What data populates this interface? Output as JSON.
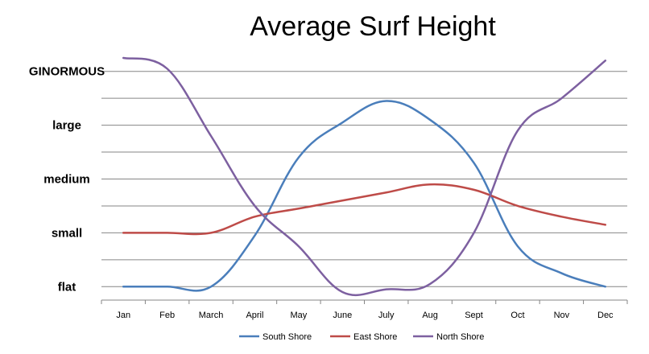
{
  "chart_data": {
    "type": "line",
    "title": "Average Surf Height",
    "xlabel": "",
    "ylabel": "",
    "categories": [
      "Jan",
      "Feb",
      "March",
      "April",
      "May",
      "June",
      "July",
      "Aug",
      "Sept",
      "Oct",
      "Nov",
      "Dec"
    ],
    "y_tick_labels": [
      {
        "label": "flat",
        "value": 0
      },
      {
        "label": "small",
        "value": 2
      },
      {
        "label": "medium",
        "value": 4
      },
      {
        "label": "large",
        "value": 6
      },
      {
        "label": "GINORMOUS",
        "value": 8
      }
    ],
    "ylim": [
      -0.5,
      8.5
    ],
    "grid": true,
    "legend_position": "bottom",
    "series": [
      {
        "name": "South Shore",
        "color": "#4A7EBB",
        "values": [
          0,
          0,
          0,
          1.9,
          4.8,
          6.1,
          6.9,
          6.2,
          4.6,
          1.5,
          0.5,
          0
        ]
      },
      {
        "name": "East Shore",
        "color": "#BE4B48",
        "values": [
          2.0,
          2.0,
          2.0,
          2.6,
          2.9,
          3.2,
          3.5,
          3.8,
          3.6,
          3.0,
          2.6,
          2.3
        ]
      },
      {
        "name": "North Shore",
        "color": "#7D60A0",
        "values": [
          8.5,
          8.1,
          5.6,
          3.0,
          1.5,
          -0.2,
          -0.1,
          0.1,
          2.0,
          5.8,
          7.0,
          8.4
        ]
      }
    ]
  }
}
